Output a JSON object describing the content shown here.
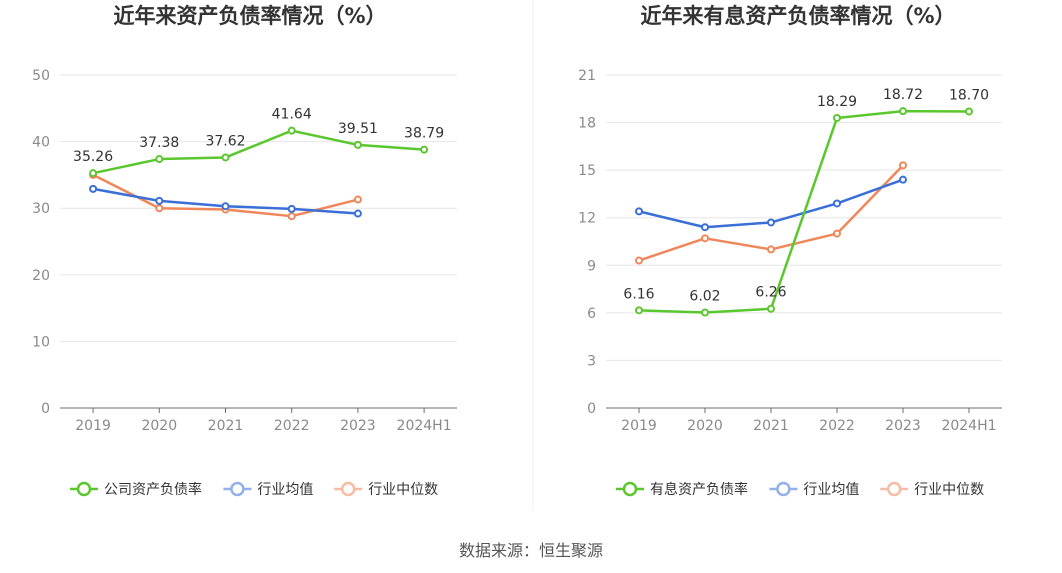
{
  "source_text": "数据来源：恒生聚源",
  "chart_data": [
    {
      "type": "line",
      "title": "近年来资产负债率情况（%）",
      "categories": [
        "2019",
        "2020",
        "2021",
        "2022",
        "2023",
        "2024H1"
      ],
      "y_ticks": [
        "0",
        "10",
        "20",
        "30",
        "40",
        "50"
      ],
      "ylim": [
        0,
        50
      ],
      "grid": true,
      "legend_position": "bottom",
      "series": [
        {
          "name": "公司资产负债率",
          "color": "#5bc72e",
          "values": [
            35.26,
            37.38,
            37.62,
            41.64,
            39.51,
            38.79
          ],
          "labels": [
            "35.26",
            "37.38",
            "37.62",
            "41.64",
            "39.51",
            "38.79"
          ]
        },
        {
          "name": "行业均值",
          "color": "#3a6fd8",
          "values": [
            32.9,
            31.1,
            30.3,
            29.9,
            29.2,
            null
          ],
          "labels": []
        },
        {
          "name": "行业中位数",
          "color": "#f0875a",
          "values": [
            35.0,
            30.0,
            29.8,
            28.8,
            31.3,
            null
          ],
          "labels": []
        }
      ]
    },
    {
      "type": "line",
      "title": "近年来有息资产负债率情况（%）",
      "categories": [
        "2019",
        "2020",
        "2021",
        "2022",
        "2023",
        "2024H1"
      ],
      "y_ticks": [
        "0",
        "3",
        "6",
        "9",
        "12",
        "15",
        "18",
        "21"
      ],
      "ylim": [
        0,
        21
      ],
      "grid": true,
      "legend_position": "bottom",
      "series": [
        {
          "name": "有息资产负债率",
          "color": "#5bc72e",
          "values": [
            6.16,
            6.02,
            6.26,
            18.29,
            18.72,
            18.7
          ],
          "labels": [
            "6.16",
            "6.02",
            "6.26",
            "18.29",
            "18.72",
            "18.70"
          ]
        },
        {
          "name": "行业均值",
          "color": "#3a6fd8",
          "values": [
            12.4,
            11.4,
            11.7,
            12.9,
            14.4,
            null
          ],
          "labels": []
        },
        {
          "name": "行业中位数",
          "color": "#f0875a",
          "values": [
            9.3,
            10.7,
            10.0,
            11.0,
            15.3,
            null
          ],
          "labels": []
        }
      ]
    }
  ]
}
